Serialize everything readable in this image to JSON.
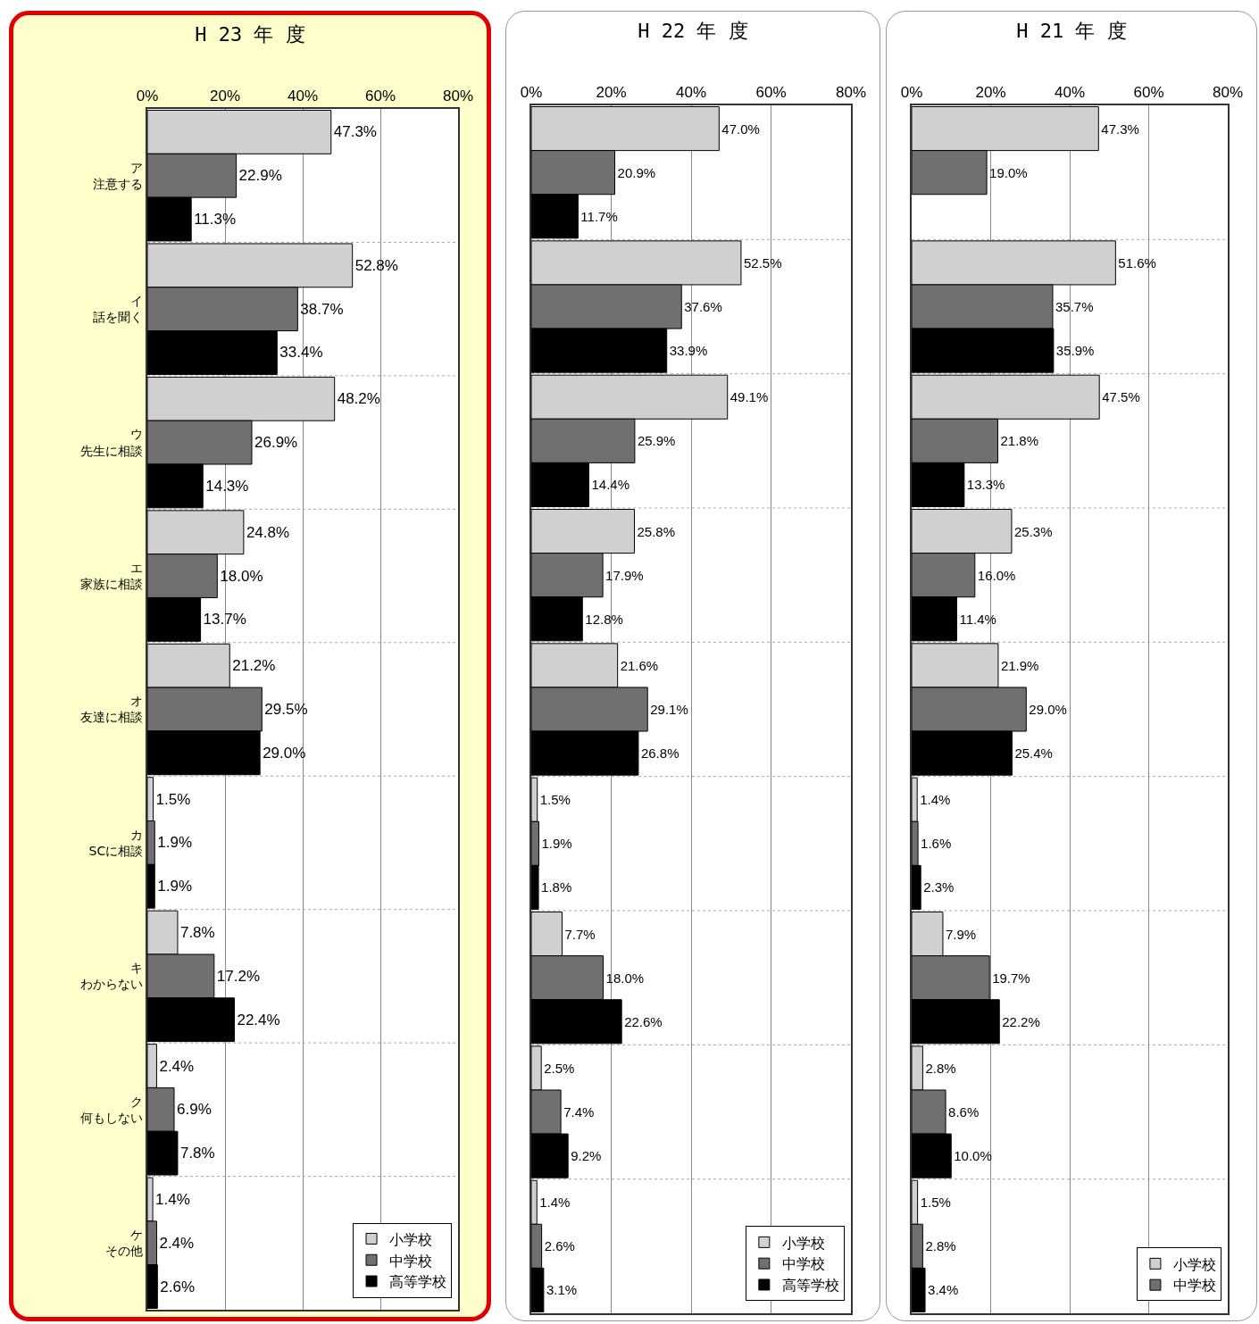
{
  "chart_data": [
    {
      "type": "bar",
      "orientation": "horizontal",
      "title": "H 23 年 度",
      "categories": [
        "ア注意する",
        "イ話を聞く",
        "ウ先生に相談",
        "エ家族に相談",
        "オ友達に相談",
        "カSCに相談",
        "キわからない",
        "ク何もしない",
        "ケその他"
      ],
      "xlim": [
        0,
        80
      ],
      "xticks": [
        {
          "value": 0,
          "label": "0%"
        },
        {
          "value": 20,
          "label": "20%"
        },
        {
          "value": 40,
          "label": "40%"
        },
        {
          "value": 60,
          "label": "60%"
        },
        {
          "value": 80,
          "label": "80%"
        }
      ],
      "grid": "x",
      "legend": "bottom right",
      "series": [
        {
          "name": "小学校",
          "color": "#d0d0d0",
          "values": [
            47.3,
            52.8,
            48.2,
            24.8,
            21.2,
            1.5,
            7.8,
            2.4,
            1.4
          ],
          "value_labels": [
            "47.3%",
            "52.8%",
            "48.2%",
            "24.8%",
            "21.2%",
            "1.5%",
            "7.8%",
            "2.4%",
            "1.4%"
          ]
        },
        {
          "name": "中学校",
          "color": "#707070",
          "values": [
            22.9,
            38.7,
            26.9,
            18.0,
            29.5,
            1.9,
            17.2,
            6.9,
            2.4
          ],
          "value_labels": [
            "22.9%",
            "38.7%",
            "26.9%",
            "18.0%",
            "29.5%",
            "1.9%",
            "17.2%",
            "6.9%",
            "2.4%"
          ]
        },
        {
          "name": "高等学校",
          "color": "#000000",
          "values": [
            11.3,
            33.4,
            14.3,
            13.7,
            29.0,
            1.9,
            22.4,
            7.8,
            2.6
          ],
          "value_labels": [
            "11.3%",
            "33.4%",
            "14.3%",
            "13.7%",
            "29.0%",
            "1.9%",
            "22.4%",
            "7.8%",
            "2.6%"
          ]
        }
      ]
    },
    {
      "type": "bar",
      "orientation": "horizontal",
      "title": "H 22 年 度",
      "categories": [
        null,
        null,
        null,
        null,
        null,
        null,
        null,
        null,
        null
      ],
      "tick_labels": "x",
      "xlim": [
        0,
        80
      ],
      "xticks": [
        {
          "value": 0,
          "label": "0%"
        },
        {
          "value": 20,
          "label": "20%"
        },
        {
          "value": 40,
          "label": "40%"
        },
        {
          "value": 60,
          "label": "60%"
        },
        {
          "value": 80,
          "label": "80%"
        }
      ],
      "grid": "x",
      "legend": "bottom right",
      "series": [
        {
          "name": "小学校",
          "color": "#d0d0d0",
          "values": [
            47.0,
            52.5,
            49.1,
            25.8,
            21.6,
            1.5,
            7.7,
            2.5,
            1.4
          ],
          "value_labels": [
            "47.0%",
            "52.5%",
            "49.1%",
            "25.8%",
            "21.6%",
            "1.5%",
            "7.7%",
            "2.5%",
            "1.4%"
          ]
        },
        {
          "name": "中学校",
          "color": "#707070",
          "values": [
            20.9,
            37.6,
            25.9,
            17.9,
            29.1,
            1.9,
            18.0,
            7.4,
            2.6
          ],
          "value_labels": [
            "20.9%",
            "37.6%",
            "25.9%",
            "17.9%",
            "29.1%",
            "1.9%",
            "18.0%",
            "7.4%",
            "2.6%"
          ]
        },
        {
          "name": "高等学校",
          "color": "#000000",
          "values": [
            11.7,
            33.9,
            14.4,
            12.8,
            26.8,
            1.8,
            22.6,
            9.2,
            3.1
          ],
          "value_labels": [
            "11.7%",
            "33.9%",
            "14.4%",
            "12.8%",
            "26.8%",
            "1.8%",
            "22.6%",
            "9.2%",
            "3.1%"
          ]
        }
      ]
    },
    {
      "type": "bar",
      "orientation": "horizontal",
      "title": "H 21 年 度",
      "categories": [
        null,
        null,
        null,
        null,
        null,
        null,
        null,
        null,
        null
      ],
      "tick_labels": "x",
      "xlim": [
        0,
        80
      ],
      "xticks": [
        {
          "value": 0,
          "label": "0%"
        },
        {
          "value": 20,
          "label": "20%"
        },
        {
          "value": 40,
          "label": "40%"
        },
        {
          "value": 60,
          "label": "60%"
        },
        {
          "value": 80,
          "label": "80%"
        }
      ],
      "grid": "x",
      "legend": "bottom right",
      "series": [
        {
          "name": "小学校",
          "color": "#d0d0d0",
          "values": [
            47.3,
            51.6,
            47.5,
            25.3,
            21.9,
            1.4,
            7.9,
            2.8,
            1.5
          ],
          "value_labels": [
            "47.3%",
            "51.6%",
            "47.5%",
            "25.3%",
            "21.9%",
            "1.4%",
            "7.9%",
            "2.8%",
            "1.5%"
          ]
        },
        {
          "name": "中学校",
          "color": "#707070",
          "values": [
            19.0,
            35.7,
            21.8,
            16.0,
            29.0,
            1.6,
            19.7,
            8.6,
            2.8
          ],
          "value_labels": [
            "19.0%",
            "35.7%",
            "21.8%",
            "16.0%",
            "29.0%",
            "1.6%",
            "19.7%",
            "8.6%",
            "2.8%"
          ]
        },
        {
          "color": "#000000",
          "values": [
            null,
            35.9,
            13.3,
            11.4,
            25.4,
            2.3,
            22.2,
            10.0,
            3.4
          ],
          "value_labels": [
            null,
            "35.9%",
            "13.3%",
            "11.4%",
            "25.4%",
            "2.3%",
            "22.2%",
            "10.0%",
            "3.4%"
          ]
        }
      ]
    }
  ]
}
